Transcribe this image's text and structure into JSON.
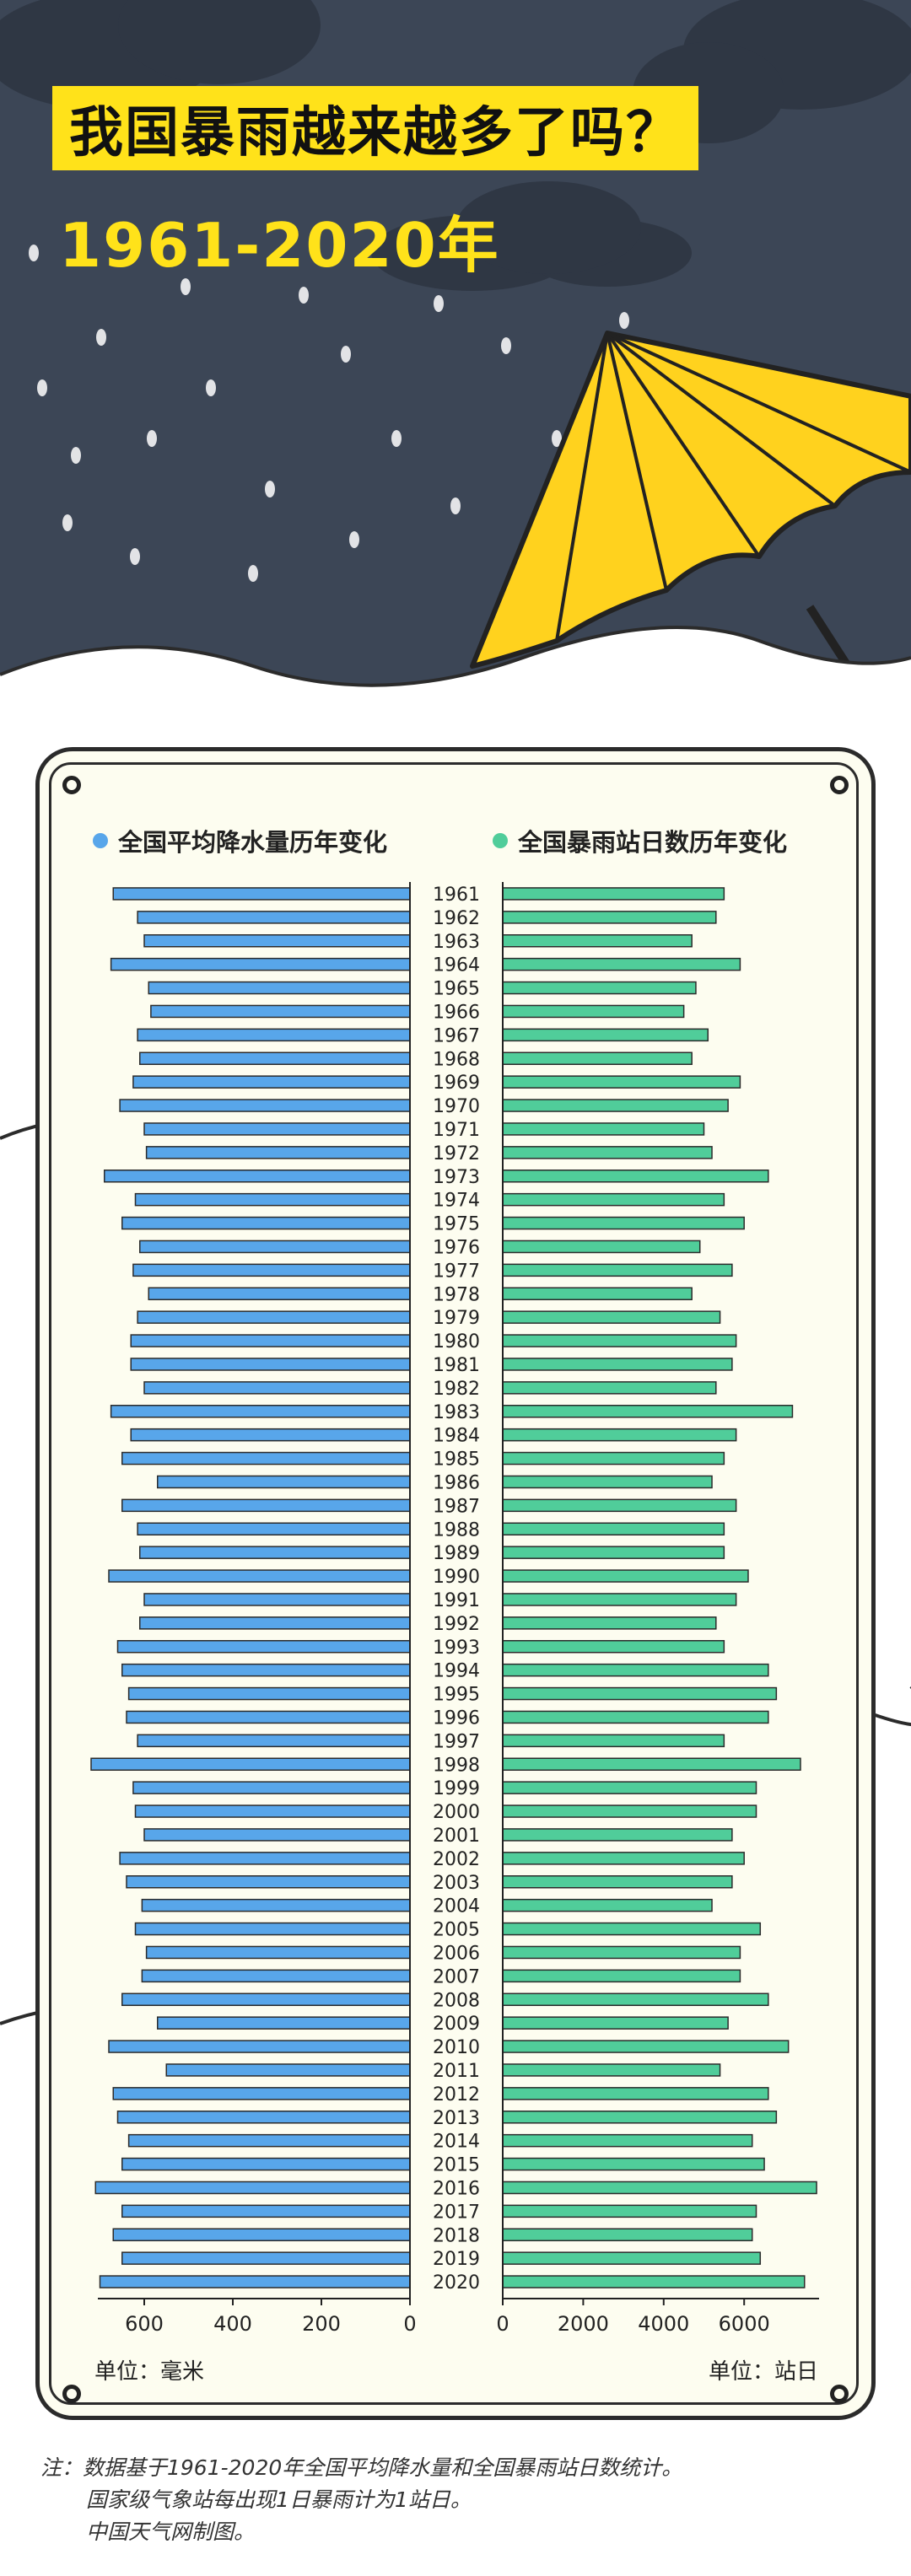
{
  "header": {
    "title": "我国暴雨越来越多了吗？",
    "subtitle": "1961-2020年"
  },
  "legend": {
    "left": "全国平均降水量历年变化",
    "right": "全国暴雨站日数历年变化"
  },
  "units": {
    "left": "单位：毫米",
    "right": "单位：站日"
  },
  "notes": [
    "注：数据基于1961-2020年全国平均降水量和全国暴雨站日数统计。",
    "国家级气象站每出现1日暴雨计为1站日。",
    "中国天气网制图。"
  ],
  "colors": {
    "header_bg": "#3c4656",
    "title_yellow": "#ffe21a",
    "precip_bar": "#58a6ea",
    "rainstorm_bar": "#50cd9a",
    "panel_bg": "#fdfdf0"
  },
  "chart_data": [
    {
      "type": "bar",
      "orientation": "horizontal",
      "title": "全国平均降水量历年变化",
      "unit": "毫米",
      "xlim": [
        700,
        0
      ],
      "xticks": [
        600,
        400,
        200,
        0
      ],
      "categories": [
        "1961",
        "1962",
        "1963",
        "1964",
        "1965",
        "1966",
        "1967",
        "1968",
        "1969",
        "1970",
        "1971",
        "1972",
        "1973",
        "1974",
        "1975",
        "1976",
        "1977",
        "1978",
        "1979",
        "1980",
        "1981",
        "1982",
        "1983",
        "1984",
        "1985",
        "1986",
        "1987",
        "1988",
        "1989",
        "1990",
        "1991",
        "1992",
        "1993",
        "1994",
        "1995",
        "1996",
        "1997",
        "1998",
        "1999",
        "2000",
        "2001",
        "2002",
        "2003",
        "2004",
        "2005",
        "2006",
        "2007",
        "2008",
        "2009",
        "2010",
        "2011",
        "2012",
        "2013",
        "2014",
        "2015",
        "2016",
        "2017",
        "2018",
        "2019",
        "2020"
      ],
      "values": [
        670,
        615,
        600,
        675,
        590,
        585,
        615,
        610,
        625,
        655,
        600,
        595,
        690,
        620,
        650,
        610,
        625,
        590,
        615,
        630,
        630,
        600,
        675,
        630,
        650,
        570,
        650,
        615,
        610,
        680,
        600,
        610,
        660,
        650,
        635,
        640,
        615,
        720,
        625,
        620,
        600,
        655,
        640,
        605,
        620,
        595,
        605,
        650,
        570,
        680,
        550,
        670,
        660,
        635,
        650,
        710,
        650,
        670,
        650,
        700
      ]
    },
    {
      "type": "bar",
      "orientation": "horizontal",
      "title": "全国暴雨站日数历年变化",
      "unit": "站日",
      "xlim": [
        0,
        8000
      ],
      "xticks": [
        0,
        2000,
        4000,
        6000
      ],
      "categories": [
        "1961",
        "1962",
        "1963",
        "1964",
        "1965",
        "1966",
        "1967",
        "1968",
        "1969",
        "1970",
        "1971",
        "1972",
        "1973",
        "1974",
        "1975",
        "1976",
        "1977",
        "1978",
        "1979",
        "1980",
        "1981",
        "1982",
        "1983",
        "1984",
        "1985",
        "1986",
        "1987",
        "1988",
        "1989",
        "1990",
        "1991",
        "1992",
        "1993",
        "1994",
        "1995",
        "1996",
        "1997",
        "1998",
        "1999",
        "2000",
        "2001",
        "2002",
        "2003",
        "2004",
        "2005",
        "2006",
        "2007",
        "2008",
        "2009",
        "2010",
        "2011",
        "2012",
        "2013",
        "2014",
        "2015",
        "2016",
        "2017",
        "2018",
        "2019",
        "2020"
      ],
      "values": [
        5500,
        5300,
        4700,
        5900,
        4800,
        4500,
        5100,
        4700,
        5900,
        5600,
        5000,
        5200,
        6600,
        5500,
        6000,
        4900,
        5700,
        4700,
        5400,
        5800,
        5700,
        5300,
        7200,
        5800,
        5500,
        5200,
        5800,
        5500,
        5500,
        6100,
        5800,
        5300,
        5500,
        6600,
        6800,
        6600,
        5500,
        7400,
        6300,
        6300,
        5700,
        6000,
        5700,
        5200,
        6400,
        5900,
        5900,
        6600,
        5600,
        7100,
        5400,
        6600,
        6800,
        6200,
        6500,
        7800,
        6300,
        6200,
        6400,
        7500
      ]
    }
  ]
}
